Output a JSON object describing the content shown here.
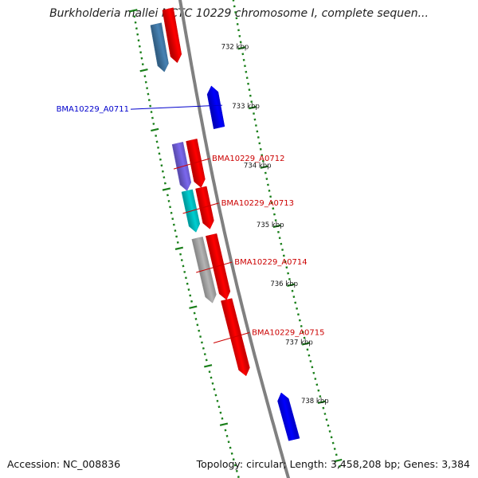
{
  "title": "Burkholderia mallei NCTC 10229 chromosome I, complete sequen...",
  "footer": {
    "accession": "Accession: NC_008836",
    "summary": "Topology: circular; Length: 3,458,208 bp; Genes: 3,384"
  },
  "colors": {
    "backbone": "#808080",
    "ticks": "#1a7f1a",
    "label_forward": "#cc0000",
    "label_reverse": "#0000cc"
  },
  "ruler": [
    "732 kbp",
    "733 kbp",
    "734 kbp",
    "735 kbp",
    "736 kbp",
    "737 kbp",
    "738 kbp"
  ],
  "features": [
    {
      "id": "f0",
      "ring": "fwd-cds",
      "color": "#ff0000",
      "start_kbp": 731.1,
      "end_kbp": 732.0,
      "label": ""
    },
    {
      "id": "f1",
      "ring": "fwd-cog",
      "color": "#4682b4",
      "start_kbp": 731.3,
      "end_kbp": 732.1,
      "label": ""
    },
    {
      "id": "f2",
      "ring": "rev-cds",
      "color": "#0000ff",
      "start_kbp": 732.5,
      "end_kbp": 733.2,
      "label": "BMA10229_A0711"
    },
    {
      "id": "f3",
      "ring": "fwd-cds",
      "color": "#ff0000",
      "start_kbp": 733.3,
      "end_kbp": 734.1,
      "label": ""
    },
    {
      "id": "f4",
      "ring": "fwd-cog",
      "color": "#7b68ee",
      "start_kbp": 733.3,
      "end_kbp": 734.1,
      "label": "BMA10229_A0712"
    },
    {
      "id": "f5",
      "ring": "fwd-cds",
      "color": "#ff0000",
      "start_kbp": 734.1,
      "end_kbp": 734.8,
      "label": ""
    },
    {
      "id": "f6",
      "ring": "fwd-cog",
      "color": "#00ced1",
      "start_kbp": 734.1,
      "end_kbp": 734.8,
      "label": "BMA10229_A0713"
    },
    {
      "id": "f7",
      "ring": "fwd-cds",
      "color": "#ff0000",
      "start_kbp": 734.9,
      "end_kbp": 736.0,
      "label": ""
    },
    {
      "id": "f8",
      "ring": "fwd-cog",
      "color": "#b4b4b4",
      "start_kbp": 734.9,
      "end_kbp": 736.0,
      "label": "BMA10229_A0714"
    },
    {
      "id": "f9",
      "ring": "fwd-cds",
      "color": "#ff0000",
      "start_kbp": 736.0,
      "end_kbp": 737.3,
      "label": "BMA10229_A0715"
    },
    {
      "id": "f10",
      "ring": "rev-cds",
      "color": "#0000ff",
      "start_kbp": 737.7,
      "end_kbp": 738.5,
      "label": ""
    }
  ]
}
